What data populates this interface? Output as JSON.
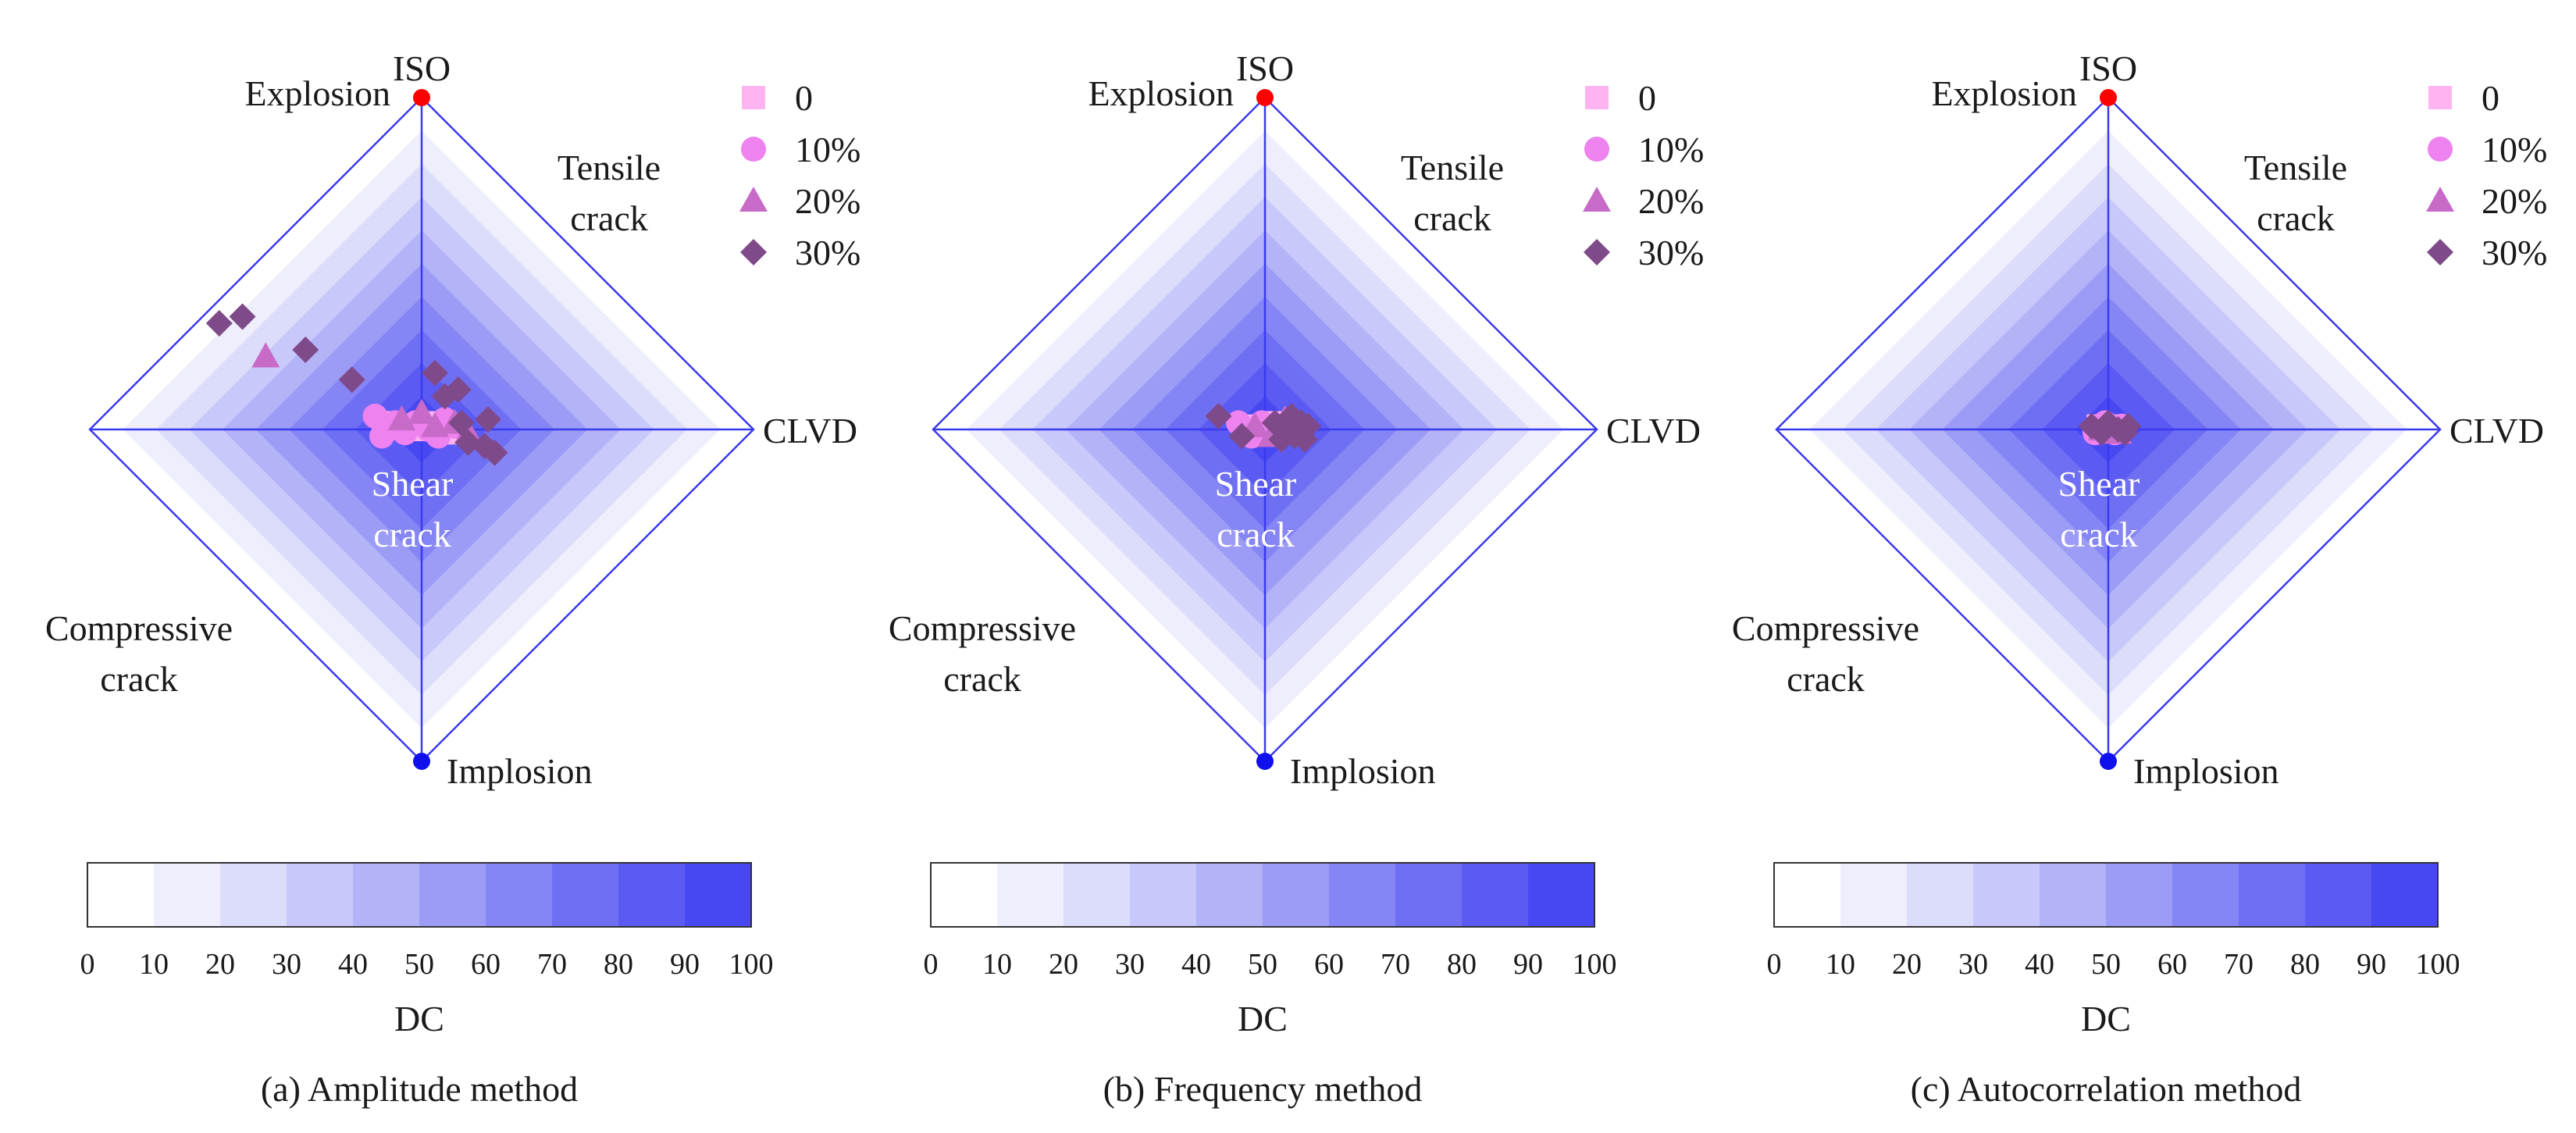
{
  "labels": {
    "iso": "ISO",
    "explosion": "Explosion",
    "tensile": [
      "Tensile",
      "crack"
    ],
    "clvd": "CLVD",
    "shear": [
      "Shear",
      "crack"
    ],
    "compressive": [
      "Compressive",
      "crack"
    ],
    "implosion": "Implosion"
  },
  "colors": {
    "diamond_outline": "#3a3af0",
    "dc_scale": [
      "#ffffff",
      "#eeeefd",
      "#dcdcfb",
      "#c8c8fa",
      "#b3b3f8",
      "#9c9cf6",
      "#8585f5",
      "#6f6ff4",
      "#5b5bf3",
      "#4848f2"
    ],
    "iso_pole": "#ff0000",
    "implosion_pole": "#1010ee",
    "shear_label": "#ffffff"
  },
  "legend": [
    {
      "label": "0",
      "marker": "square",
      "color": "#ffb3f0"
    },
    {
      "label": "10%",
      "marker": "circle",
      "color": "#ee82ee"
    },
    {
      "label": "20%",
      "marker": "triangle",
      "color": "#c86ac8"
    },
    {
      "label": "30%",
      "marker": "diamond",
      "color": "#7f4a8a"
    }
  ],
  "colorbar": {
    "title": "DC",
    "ticks": [
      "0",
      "10",
      "20",
      "30",
      "40",
      "50",
      "60",
      "70",
      "80",
      "90",
      "100"
    ]
  },
  "chart_data": [
    {
      "type": "scatter",
      "title": "(a) Amplitude method",
      "axes": [
        "CLVD",
        "ISO"
      ],
      "xlim": [
        -1,
        1
      ],
      "ylim": [
        -1,
        1
      ],
      "series": [
        {
          "name": "0",
          "points": [
            [
              -0.1,
              0.02
            ],
            [
              -0.05,
              0.01
            ],
            [
              0.0,
              0.0
            ],
            [
              0.05,
              0.02
            ],
            [
              0.1,
              -0.01
            ]
          ]
        },
        {
          "name": "10%",
          "points": [
            [
              -0.14,
              0.04
            ],
            [
              -0.12,
              -0.02
            ],
            [
              -0.08,
              0.02
            ],
            [
              -0.05,
              -0.01
            ],
            [
              -0.02,
              0.02
            ],
            [
              0.02,
              0.0
            ],
            [
              0.05,
              -0.02
            ],
            [
              0.07,
              0.03
            ],
            [
              0.1,
              0.01
            ],
            [
              -0.1,
              0.0
            ]
          ]
        },
        {
          "name": "20%",
          "points": [
            [
              -0.47,
              0.22
            ],
            [
              -0.06,
              0.03
            ],
            [
              0.0,
              0.05
            ],
            [
              0.04,
              0.01
            ],
            [
              0.1,
              0.02
            ],
            [
              0.14,
              -0.01
            ]
          ]
        },
        {
          "name": "30%",
          "points": [
            [
              -0.61,
              0.32
            ],
            [
              -0.54,
              0.34
            ],
            [
              -0.35,
              0.24
            ],
            [
              -0.21,
              0.15
            ],
            [
              0.04,
              0.17
            ],
            [
              0.07,
              0.1
            ],
            [
              0.11,
              0.12
            ],
            [
              0.12,
              0.02
            ],
            [
              0.14,
              -0.04
            ],
            [
              0.19,
              -0.05
            ],
            [
              0.22,
              -0.07
            ],
            [
              0.2,
              0.03
            ]
          ]
        }
      ]
    },
    {
      "type": "scatter",
      "title": "(b) Frequency method",
      "axes": [
        "CLVD",
        "ISO"
      ],
      "xlim": [
        -1,
        1
      ],
      "ylim": [
        -1,
        1
      ],
      "series": [
        {
          "name": "0",
          "points": [
            [
              -0.06,
              0.01
            ],
            [
              -0.02,
              0.0
            ],
            [
              0.02,
              0.02
            ],
            [
              0.05,
              -0.01
            ]
          ]
        },
        {
          "name": "10%",
          "points": [
            [
              -0.08,
              0.02
            ],
            [
              -0.04,
              -0.02
            ],
            [
              -0.01,
              0.02
            ],
            [
              0.03,
              0.0
            ],
            [
              0.06,
              -0.01
            ],
            [
              0.09,
              0.02
            ]
          ]
        },
        {
          "name": "20%",
          "points": [
            [
              -0.03,
              0.01
            ],
            [
              0.02,
              -0.02
            ],
            [
              0.06,
              0.03
            ],
            [
              0.1,
              0.0
            ]
          ]
        },
        {
          "name": "30%",
          "points": [
            [
              -0.14,
              0.04
            ],
            [
              -0.07,
              -0.02
            ],
            [
              0.03,
              0.02
            ],
            [
              0.05,
              -0.03
            ],
            [
              0.08,
              0.04
            ],
            [
              0.09,
              -0.02
            ],
            [
              0.11,
              0.02
            ],
            [
              0.12,
              -0.03
            ],
            [
              0.13,
              0.01
            ],
            [
              0.07,
              0.0
            ]
          ]
        }
      ]
    },
    {
      "type": "scatter",
      "title": "(c) Autocorrelation method",
      "axes": [
        "CLVD",
        "ISO"
      ],
      "xlim": [
        -1,
        1
      ],
      "ylim": [
        -1,
        1
      ],
      "series": [
        {
          "name": "0",
          "points": [
            [
              -0.03,
              0.01
            ],
            [
              0.0,
              0.0
            ],
            [
              0.02,
              0.01
            ]
          ]
        },
        {
          "name": "10%",
          "points": [
            [
              -0.04,
              -0.01
            ],
            [
              -0.01,
              0.02
            ],
            [
              0.02,
              -0.01
            ],
            [
              0.04,
              0.01
            ]
          ]
        },
        {
          "name": "20%",
          "points": [
            [
              -0.02,
              0.0
            ],
            [
              0.01,
              0.01
            ],
            [
              0.03,
              -0.01
            ]
          ]
        },
        {
          "name": "30%",
          "points": [
            [
              -0.05,
              0.01
            ],
            [
              -0.02,
              -0.01
            ],
            [
              0.0,
              0.02
            ],
            [
              0.03,
              0.0
            ],
            [
              0.05,
              -0.01
            ],
            [
              0.06,
              0.01
            ]
          ]
        }
      ]
    }
  ]
}
